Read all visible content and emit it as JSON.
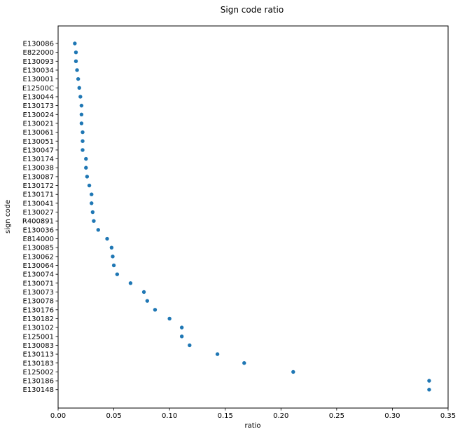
{
  "chart_data": {
    "type": "scatter",
    "title": "Sign code ratio",
    "xlabel": "ratio",
    "ylabel": "sign code",
    "xlim": [
      0.0,
      0.35
    ],
    "xticks": [
      "0.00",
      "0.05",
      "0.10",
      "0.15",
      "0.20",
      "0.25",
      "0.30",
      "0.35"
    ],
    "grid": false,
    "marker_color": "#1f77b4",
    "categories": [
      "E130086",
      "E822000",
      "E130093",
      "E130034",
      "E130001",
      "E12500C",
      "E130044",
      "E130173",
      "E130024",
      "E130021",
      "E130061",
      "E130051",
      "E130047",
      "E130174",
      "E130038",
      "E130087",
      "E130172",
      "E130171",
      "E130041",
      "E130027",
      "R400891",
      "E130036",
      "E814000",
      "E130085",
      "E130062",
      "E130064",
      "E130074",
      "E130071",
      "E130073",
      "E130078",
      "E130176",
      "E130182",
      "E130102",
      "E125001",
      "E130083",
      "E130113",
      "E130183",
      "E125002",
      "E130186",
      "E130148"
    ],
    "values": [
      0.015,
      0.016,
      0.016,
      0.017,
      0.018,
      0.019,
      0.02,
      0.021,
      0.021,
      0.021,
      0.022,
      0.022,
      0.022,
      0.025,
      0.025,
      0.026,
      0.028,
      0.03,
      0.03,
      0.031,
      0.032,
      0.036,
      0.044,
      0.048,
      0.049,
      0.05,
      0.053,
      0.065,
      0.077,
      0.08,
      0.087,
      0.1,
      0.111,
      0.111,
      0.118,
      0.143,
      0.167,
      0.211,
      0.333,
      0.333
    ]
  }
}
